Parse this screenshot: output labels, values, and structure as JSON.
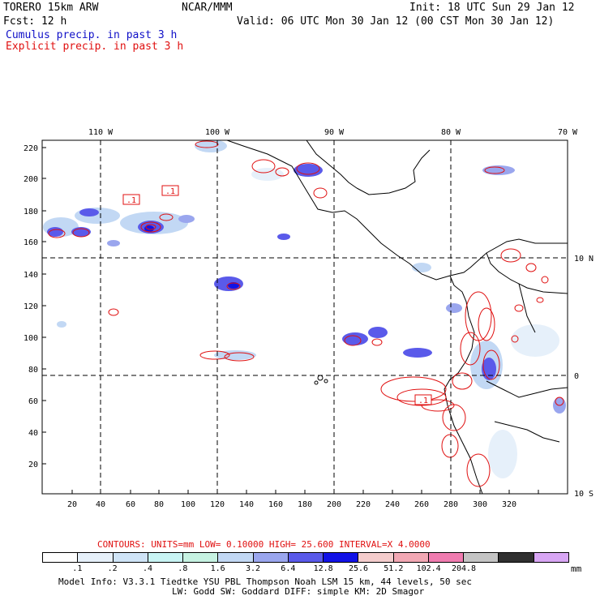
{
  "header": {
    "model_title": "TORERO  15km ARW",
    "institution": "NCAR/MMM",
    "init": "Init: 18 UTC Sun 29 Jan 12",
    "fcst": "Fcst:   12 h",
    "valid": "Valid: 06 UTC Mon 30 Jan 12 (00 CST Mon 30 Jan 12)",
    "legend_cumulus": "Cumulus precip. in past 3 h",
    "legend_explicit": "Explicit precip. in past 3 h"
  },
  "colors": {
    "cumulus": "#1010c8",
    "explicit": "#e01010"
  },
  "map": {
    "top_axis_labels": [
      "110 W",
      "100 W",
      "90 W",
      "80 W",
      "70 W"
    ],
    "right_axis_labels": [
      "10 N",
      "0",
      "10 S"
    ],
    "left_axis_labels": [
      "220",
      "200",
      "180",
      "160",
      "140",
      "120",
      "100",
      "80",
      "60",
      "40",
      "20"
    ],
    "bottom_axis_labels": [
      "20",
      "40",
      "60",
      "80",
      "100",
      "120",
      "140",
      "160",
      "180",
      "200",
      "220",
      "240",
      "260",
      "280",
      "300",
      "320"
    ],
    "contour_labels": [
      ".1",
      ".1",
      ".1"
    ]
  },
  "contours_info": {
    "label": "CONTOURS:  UNITS=mm  LOW= 0.10000      HIGH=  25.600      INTERVAL=X  4.0000"
  },
  "colorbar": {
    "colors": [
      "#ffffff",
      "#e6f0fa",
      "#cfe4f7",
      "#c8f4f4",
      "#c6f2e2",
      "#c2d8f4",
      "#9aa6ee",
      "#5a5aea",
      "#1212e6",
      "#f4cccc",
      "#f2a8b4",
      "#f07cb0",
      "#c4c4c4",
      "#303030",
      "#d8a6f4"
    ],
    "labels": [
      ".1",
      ".2",
      ".4",
      ".8",
      "1.6",
      "3.2",
      "6.4",
      "12.8",
      "25.6",
      "51.2",
      "102.4",
      "204.8"
    ],
    "unit": "mm"
  },
  "footer": {
    "line1": "Model Info: V3.3.1   Tiedtke YSU PBL  Thompson    Noah LSM  15 km,   44 levels,   50 sec",
    "line2": "LW: Godd SW: Goddard DIFF: simple KM: 2D Smagor"
  }
}
